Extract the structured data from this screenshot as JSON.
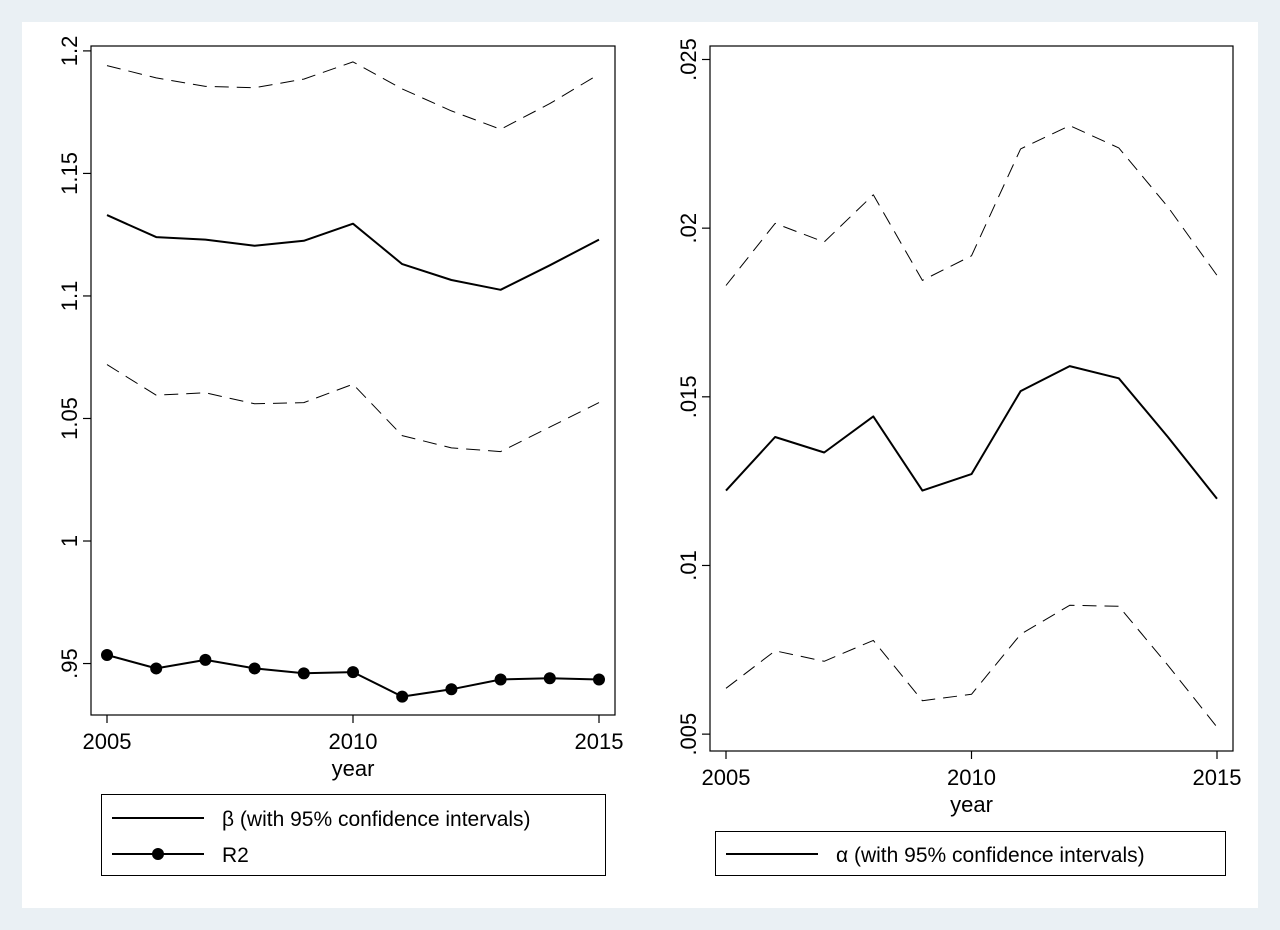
{
  "chart_data": [
    {
      "type": "line",
      "xlabel": "year",
      "ylabel": "",
      "xlim": [
        2005,
        2015
      ],
      "ylim": [
        0.929,
        1.202
      ],
      "xticks": [
        2005,
        2010,
        2015
      ],
      "xtick_labels": [
        "2005",
        "2010",
        "2015"
      ],
      "yticks": [
        0.95,
        1.0,
        1.05,
        1.1,
        1.15,
        1.2
      ],
      "ytick_labels": [
        ".95",
        "1",
        "1.05",
        "1.1",
        "1.15",
        "1.2"
      ],
      "x": [
        2005,
        2006,
        2007,
        2008,
        2009,
        2010,
        2011,
        2012,
        2013,
        2014,
        2015
      ],
      "series": [
        {
          "name": "β (with 95% confidence intervals)",
          "style": "solid",
          "values": [
            1.133,
            1.124,
            1.123,
            1.1205,
            1.1225,
            1.1295,
            1.113,
            1.1065,
            1.1025,
            1.1125,
            1.123
          ]
        },
        {
          "style": "dashed",
          "role": "upper 95% CI",
          "values": [
            1.194,
            1.189,
            1.1855,
            1.185,
            1.1885,
            1.1955,
            1.1845,
            1.1755,
            1.168,
            1.1785,
            1.1905
          ]
        },
        {
          "style": "dashed",
          "role": "lower 95% CI",
          "values": [
            1.072,
            1.0595,
            1.0605,
            1.056,
            1.0565,
            1.064,
            1.043,
            1.038,
            1.0365,
            1.0465,
            1.0565
          ]
        },
        {
          "name": "R2",
          "style": "solid-markers",
          "values": [
            0.9535,
            0.948,
            0.9515,
            0.948,
            0.946,
            0.9465,
            0.9365,
            0.9395,
            0.9435,
            0.944,
            0.9435
          ]
        }
      ],
      "legend": {
        "position": "bottom",
        "entries": [
          {
            "label": "β (with 95% confidence intervals)",
            "key": "line"
          },
          {
            "label": "R2",
            "key": "line-marker"
          }
        ]
      },
      "grid": false
    },
    {
      "type": "line",
      "xlabel": "year",
      "ylabel": "",
      "xlim": [
        2005,
        2015
      ],
      "ylim": [
        0.0045,
        0.0254
      ],
      "xticks": [
        2005,
        2010,
        2015
      ],
      "xtick_labels": [
        "2005",
        "2010",
        "2015"
      ],
      "yticks": [
        0.005,
        0.01,
        0.015,
        0.02,
        0.025
      ],
      "ytick_labels": [
        ".005",
        ".01",
        ".015",
        ".02",
        ".025"
      ],
      "x": [
        2005,
        2006,
        2007,
        2008,
        2009,
        2010,
        2011,
        2012,
        2013,
        2014,
        2015
      ],
      "series": [
        {
          "name": "α (with 95% confidence intervals)",
          "style": "solid",
          "values": [
            0.01222,
            0.01381,
            0.01335,
            0.01442,
            0.01222,
            0.01271,
            0.01517,
            0.01591,
            0.01555,
            0.01381,
            0.01198
          ]
        },
        {
          "style": "dashed",
          "role": "upper 95% CI",
          "values": [
            0.0183,
            0.02014,
            0.01959,
            0.02099,
            0.01845,
            0.01918,
            0.02235,
            0.02304,
            0.02238,
            0.02063,
            0.0186
          ]
        },
        {
          "style": "dashed",
          "role": "lower 95% CI",
          "values": [
            0.00636,
            0.00747,
            0.00716,
            0.00778,
            0.00599,
            0.00618,
            0.00796,
            0.00882,
            0.00879,
            0.00704,
            0.00521
          ]
        }
      ],
      "legend": {
        "position": "bottom",
        "entries": [
          {
            "label": "α (with 95% confidence intervals)",
            "key": "line"
          }
        ]
      },
      "grid": false
    }
  ]
}
